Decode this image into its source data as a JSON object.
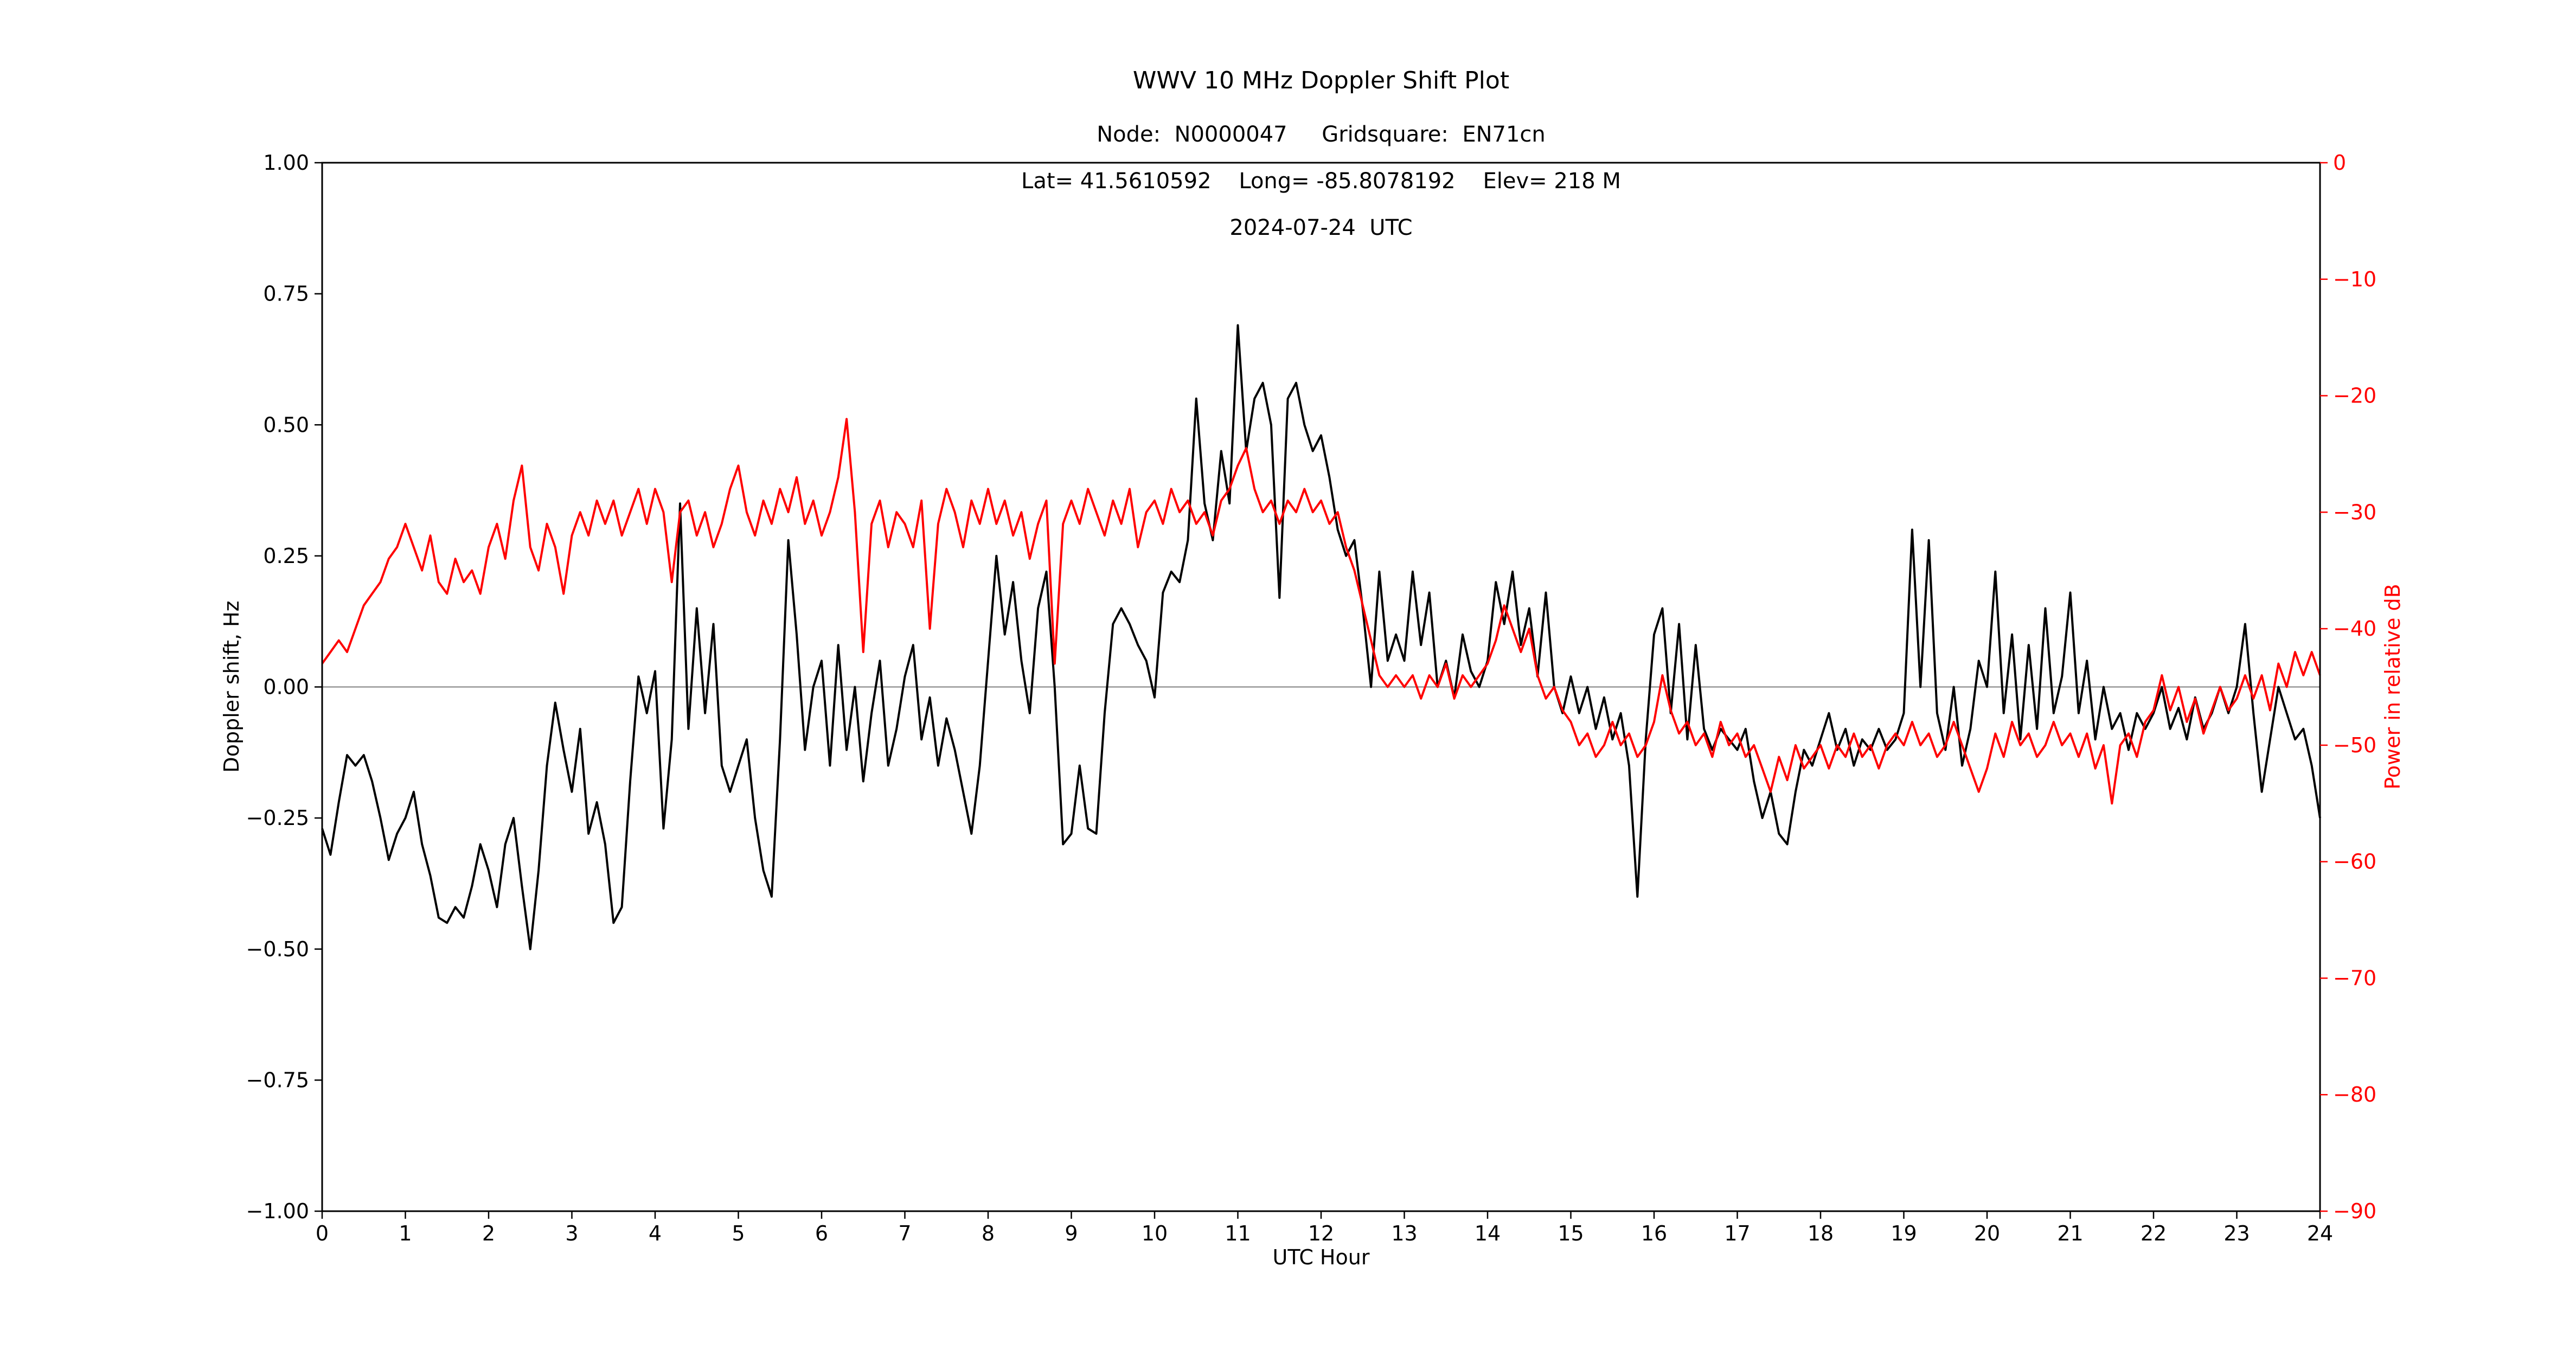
{
  "chart_data": {
    "type": "line",
    "title": "WWV 10 MHz Doppler Shift Plot",
    "subtitle_lines": [
      "Node:  N0000047     Gridsquare:  EN71cn",
      "Lat= 41.5610592    Long= -85.8078192    Elev= 218 M",
      "2024-07-24  UTC"
    ],
    "xlabel": "UTC Hour",
    "ylabel_left": "Doppler shift, Hz",
    "ylabel_right": "Power in relative dB",
    "xlim": [
      0,
      24
    ],
    "ylim_left": [
      -1.0,
      1.0
    ],
    "ylim_right": [
      -90,
      0
    ],
    "grid": false,
    "zero_line": true,
    "legend": "none",
    "colors": {
      "doppler_series": "#000000",
      "power_series": "#ff0000",
      "right_axis_text": "#ff0000",
      "zero_line": "#808080",
      "frame": "#000000"
    },
    "x_ticks": [
      0,
      1,
      2,
      3,
      4,
      5,
      6,
      7,
      8,
      9,
      10,
      11,
      12,
      13,
      14,
      15,
      16,
      17,
      18,
      19,
      20,
      21,
      22,
      23,
      24
    ],
    "x_tick_labels": [
      "0",
      "1",
      "2",
      "3",
      "4",
      "5",
      "6",
      "7",
      "8",
      "9",
      "10",
      "11",
      "12",
      "13",
      "14",
      "15",
      "16",
      "17",
      "18",
      "19",
      "20",
      "21",
      "22",
      "23",
      "24"
    ],
    "y_ticks_left": [
      1.0,
      0.75,
      0.5,
      0.25,
      0.0,
      -0.25,
      -0.5,
      -0.75,
      -1.0
    ],
    "y_tick_labels_left": [
      "1.00",
      "0.75",
      "0.50",
      "0.25",
      "0.00",
      "−0.25",
      "−0.50",
      "−0.75",
      "−1.00"
    ],
    "y_ticks_right": [
      0,
      -10,
      -20,
      -30,
      -40,
      -50,
      -60,
      -70,
      -80,
      -90
    ],
    "y_tick_labels_right": [
      "0",
      "−10",
      "−20",
      "−30",
      "−40",
      "−50",
      "−60",
      "−70",
      "−80",
      "−90"
    ],
    "x_start": 0,
    "x_step": 0.1,
    "series": [
      {
        "name": "Doppler shift",
        "axis": "left",
        "color": "#000000",
        "values": [
          -0.27,
          -0.32,
          -0.22,
          -0.13,
          -0.15,
          -0.13,
          -0.18,
          -0.25,
          -0.33,
          -0.28,
          -0.25,
          -0.2,
          -0.3,
          -0.36,
          -0.44,
          -0.45,
          -0.42,
          -0.44,
          -0.38,
          -0.3,
          -0.35,
          -0.42,
          -0.3,
          -0.25,
          -0.38,
          -0.5,
          -0.35,
          -0.15,
          -0.03,
          -0.12,
          -0.2,
          -0.08,
          -0.28,
          -0.22,
          -0.3,
          -0.45,
          -0.42,
          -0.18,
          0.02,
          -0.05,
          0.03,
          -0.27,
          -0.1,
          0.35,
          -0.08,
          0.15,
          -0.05,
          0.12,
          -0.15,
          -0.2,
          -0.15,
          -0.1,
          -0.25,
          -0.35,
          -0.4,
          -0.1,
          0.28,
          0.1,
          -0.12,
          0,
          0.05,
          -0.15,
          0.08,
          -0.12,
          0,
          -0.18,
          -0.05,
          0.05,
          -0.15,
          -0.08,
          0.02,
          0.08,
          -0.1,
          -0.02,
          -0.15,
          -0.06,
          -0.12,
          -0.2,
          -0.28,
          -0.15,
          0.05,
          0.25,
          0.1,
          0.2,
          0.05,
          -0.05,
          0.15,
          0.22,
          0,
          -0.3,
          -0.28,
          -0.15,
          -0.27,
          -0.28,
          -0.05,
          0.12,
          0.15,
          0.12,
          0.08,
          0.05,
          -0.02,
          0.18,
          0.22,
          0.2,
          0.28,
          0.55,
          0.35,
          0.28,
          0.45,
          0.35,
          0.69,
          0.45,
          0.55,
          0.58,
          0.5,
          0.17,
          0.55,
          0.58,
          0.5,
          0.45,
          0.48,
          0.4,
          0.3,
          0.25,
          0.28,
          0.15,
          0,
          0.22,
          0.05,
          0.1,
          0.05,
          0.22,
          0.08,
          0.18,
          0,
          0.05,
          -0.02,
          0.1,
          0.03,
          0,
          0.05,
          0.2,
          0.12,
          0.22,
          0.08,
          0.15,
          0.02,
          0.18,
          0,
          -0.05,
          0.02,
          -0.05,
          0,
          -0.08,
          -0.02,
          -0.1,
          -0.05,
          -0.15,
          -0.4,
          -0.1,
          0.1,
          0.15,
          -0.05,
          0.12,
          -0.1,
          0.08,
          -0.08,
          -0.12,
          -0.08,
          -0.1,
          -0.12,
          -0.08,
          -0.18,
          -0.25,
          -0.2,
          -0.28,
          -0.3,
          -0.2,
          -0.12,
          -0.15,
          -0.1,
          -0.05,
          -0.12,
          -0.08,
          -0.15,
          -0.1,
          -0.12,
          -0.08,
          -0.12,
          -0.1,
          -0.05,
          0.3,
          0,
          0.28,
          -0.05,
          -0.12,
          0,
          -0.15,
          -0.08,
          0.05,
          0,
          0.22,
          -0.05,
          0.1,
          -0.1,
          0.08,
          -0.08,
          0.15,
          -0.05,
          0.02,
          0.18,
          -0.05,
          0.05,
          -0.1,
          0,
          -0.08,
          -0.05,
          -0.12,
          -0.05,
          -0.08,
          -0.05,
          0,
          -0.08,
          -0.04,
          -0.1,
          -0.02,
          -0.08,
          -0.05,
          0,
          -0.05,
          0,
          0.12,
          -0.05,
          -0.2,
          -0.1,
          0,
          -0.05,
          -0.1,
          -0.08,
          -0.15,
          -0.25
        ]
      },
      {
        "name": "Power",
        "axis": "right",
        "color": "#ff0000",
        "values": [
          -43,
          -42,
          -41,
          -42,
          -40,
          -38,
          -37,
          -36,
          -34,
          -33,
          -31,
          -33,
          -35,
          -32,
          -36,
          -37,
          -34,
          -36,
          -35,
          -37,
          -33,
          -31,
          -34,
          -29,
          -26,
          -33,
          -35,
          -31,
          -33,
          -37,
          -32,
          -30,
          -32,
          -29,
          -31,
          -29,
          -32,
          -30,
          -28,
          -31,
          -28,
          -30,
          -36,
          -30,
          -29,
          -32,
          -30,
          -33,
          -31,
          -28,
          -26,
          -30,
          -32,
          -29,
          -31,
          -28,
          -30,
          -27,
          -31,
          -29,
          -32,
          -30,
          -27,
          -22,
          -30,
          -42,
          -31,
          -29,
          -33,
          -30,
          -31,
          -33,
          -29,
          -40,
          -31,
          -28,
          -30,
          -33,
          -29,
          -31,
          -28,
          -31,
          -29,
          -32,
          -30,
          -34,
          -31,
          -29,
          -43,
          -31,
          -29,
          -31,
          -28,
          -30,
          -32,
          -29,
          -31,
          -28,
          -33,
          -30,
          -29,
          -31,
          -28,
          -30,
          -29,
          -31,
          -30,
          -32,
          -29,
          -28,
          -26,
          -24.5,
          -28,
          -30,
          -29,
          -31,
          -29,
          -30,
          -28,
          -30,
          -29,
          -31,
          -30,
          -33,
          -35,
          -38,
          -41,
          -44,
          -45,
          -44,
          -45,
          -44,
          -46,
          -44,
          -45,
          -43,
          -46,
          -44,
          -45,
          -44,
          -43,
          -41,
          -38,
          -40,
          -42,
          -40,
          -44,
          -46,
          -45,
          -47,
          -48,
          -50,
          -49,
          -51,
          -50,
          -48,
          -50,
          -49,
          -51,
          -50,
          -48,
          -44,
          -47,
          -49,
          -48,
          -50,
          -49,
          -51,
          -48,
          -50,
          -49,
          -51,
          -50,
          -52,
          -54,
          -51,
          -53,
          -50,
          -52,
          -51,
          -50,
          -52,
          -50,
          -51,
          -49,
          -51,
          -50,
          -52,
          -50,
          -49,
          -50,
          -48,
          -50,
          -49,
          -51,
          -50,
          -48,
          -50,
          -52,
          -54,
          -52,
          -49,
          -51,
          -48,
          -50,
          -49,
          -51,
          -50,
          -48,
          -50,
          -49,
          -51,
          -49,
          -52,
          -50,
          -55,
          -50,
          -49,
          -51,
          -48,
          -47,
          -44,
          -47,
          -45,
          -48,
          -46,
          -49,
          -47,
          -45,
          -47,
          -46,
          -44,
          -46,
          -44,
          -47,
          -43,
          -45,
          -42,
          -44,
          -42,
          -44
        ]
      }
    ]
  }
}
